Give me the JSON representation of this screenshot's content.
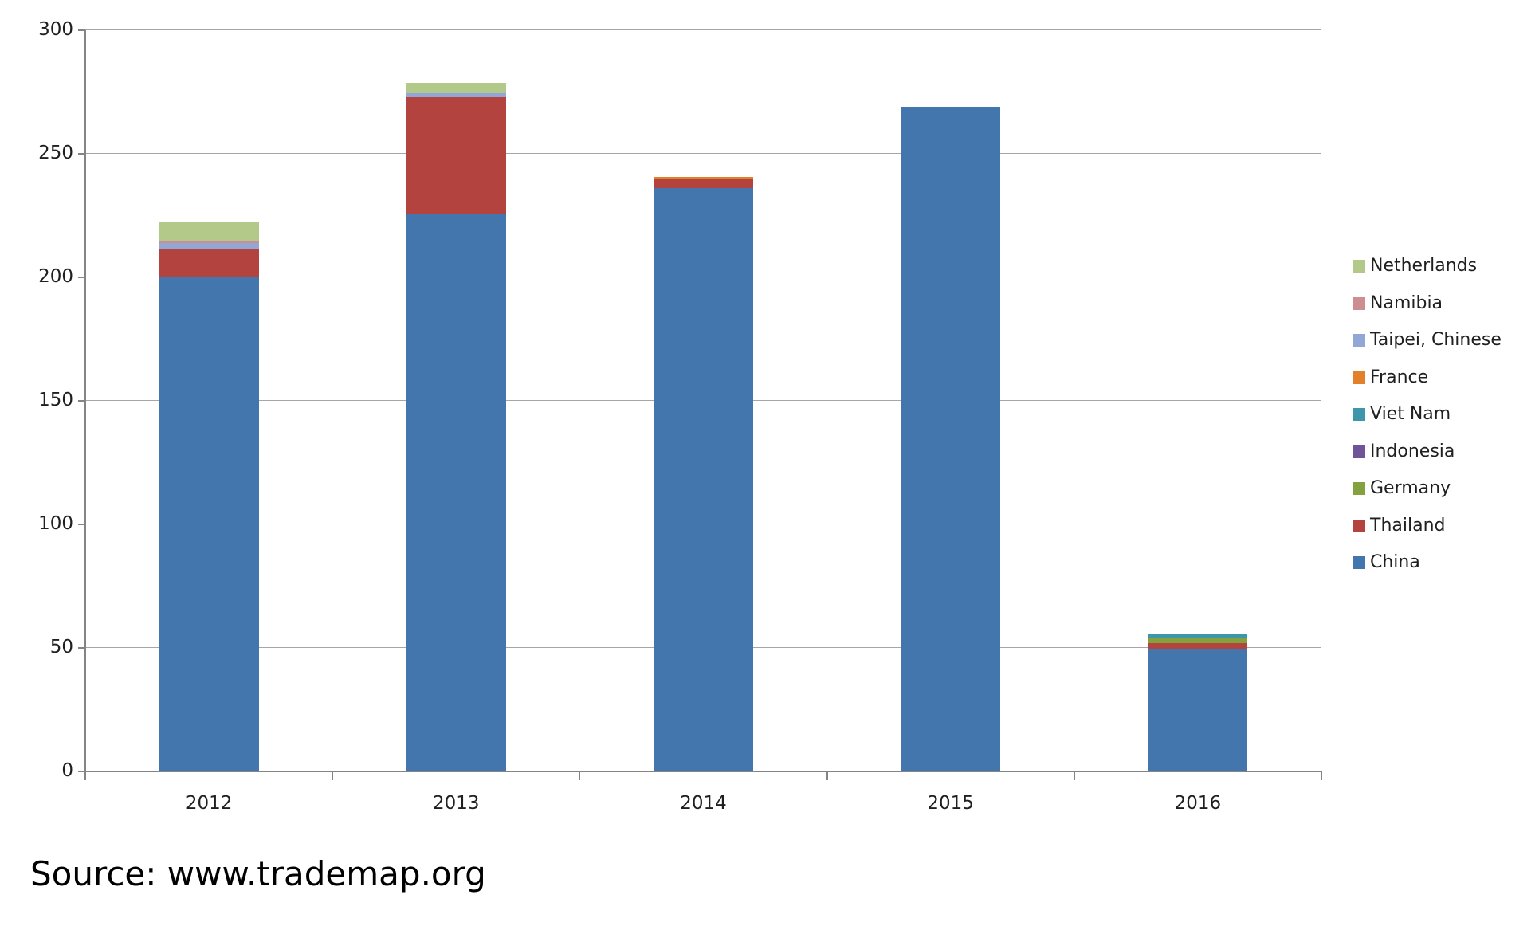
{
  "chart_data": {
    "type": "bar",
    "stacked": true,
    "title": "",
    "xlabel": "",
    "ylabel": "",
    "categories": [
      "2012",
      "2013",
      "2014",
      "2015",
      "2016"
    ],
    "series": [
      {
        "name": "China",
        "color": "#4376ad",
        "values": [
          200,
          225.5,
          236,
          269,
          49.3
        ]
      },
      {
        "name": "Thailand",
        "color": "#b2433f",
        "values": [
          11.5,
          47.5,
          3.8,
          0,
          2.6
        ]
      },
      {
        "name": "Germany",
        "color": "#84a140",
        "values": [
          0,
          0,
          0,
          0,
          1.9
        ]
      },
      {
        "name": "Indonesia",
        "color": "#6f5499",
        "values": [
          0,
          0,
          0,
          0,
          0
        ]
      },
      {
        "name": "Viet Nam",
        "color": "#3d96aa",
        "values": [
          0,
          0,
          0,
          0,
          1.6
        ]
      },
      {
        "name": "France",
        "color": "#e3812b",
        "values": [
          0,
          0,
          1,
          0,
          0
        ]
      },
      {
        "name": "Taipei, Chinese",
        "color": "#92a7d6",
        "values": [
          2.3,
          1.5,
          0,
          0,
          0
        ]
      },
      {
        "name": "Namibia",
        "color": "#cc8e91",
        "values": [
          1,
          0,
          0,
          0,
          0
        ]
      },
      {
        "name": "Netherlands",
        "color": "#b2c98a",
        "values": [
          7.7,
          4.2,
          0,
          0,
          0
        ]
      }
    ],
    "totals_approx": [
      222.5,
      278.7,
      240.8,
      269,
      55.4
    ],
    "ylim": [
      0,
      300
    ],
    "ytick_interval": 50,
    "yticks": [
      0,
      50,
      100,
      150,
      200,
      250,
      300
    ],
    "grid": true,
    "legend_position": "right",
    "legend_order_top_to_bottom": [
      "Netherlands",
      "Namibia",
      "Taipei, Chinese",
      "France",
      "Viet Nam",
      "Indonesia",
      "Germany",
      "Thailand",
      "China"
    ]
  },
  "axis_style": {
    "gridline_color": "#a6a6a6",
    "axis_color": "#848484",
    "label_color": "#1f1f1f"
  },
  "footer": {
    "source_text": "Source: www.trademap.org"
  }
}
